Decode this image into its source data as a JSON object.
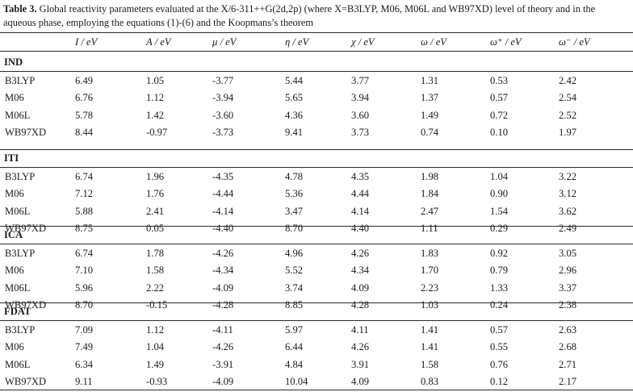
{
  "caption": {
    "label": "Table 3.",
    "text": " Global reactivity parameters evaluated at the X/6-311++G(2d,2p) (where X=B3LYP, M06, M06L and WB97XD) level of theory and in the aqueous phase, employing the equations (1)-(6) and the Koopmans’s theorem"
  },
  "headers": [
    "I / eV",
    "A / eV",
    "μ / eV",
    "η / eV",
    "χ / eV",
    "ω / eV",
    "ω⁺ / eV",
    "ω⁻ / eV"
  ],
  "groups": [
    {
      "name": "IND",
      "rows": [
        {
          "method": "B3LYP",
          "values": [
            "6.49",
            "1.05",
            "-3.77",
            "5.44",
            "3.77",
            "1.31",
            "0.53",
            "2.42"
          ]
        },
        {
          "method": "M06",
          "values": [
            "6.76",
            "1.12",
            "-3.94",
            "5.65",
            "3.94",
            "1.37",
            "0.57",
            "2.54"
          ]
        },
        {
          "method": "M06L",
          "values": [
            "5.78",
            "1.42",
            "-3.60",
            "4.36",
            "3.60",
            "1.49",
            "0.72",
            "2.52"
          ]
        },
        {
          "method": "WB97XD",
          "values": [
            "8.44",
            "-0.97",
            "-3.73",
            "9.41",
            "3.73",
            "0.74",
            "0.10",
            "1.97"
          ]
        }
      ]
    },
    {
      "name": "ITI",
      "rows": [
        {
          "method": "B3LYP",
          "values": [
            "6.74",
            "1.96",
            "-4.35",
            "4.78",
            "4.35",
            "1.98",
            "1.04",
            "3.22"
          ]
        },
        {
          "method": "M06",
          "values": [
            "7.12",
            "1.76",
            "-4.44",
            "5.36",
            "4.44",
            "1.84",
            "0.90",
            "3.12"
          ]
        },
        {
          "method": "M06L",
          "values": [
            "5.88",
            "2.41",
            "-4.14",
            "3.47",
            "4.14",
            "2.47",
            "1.54",
            "3.62"
          ]
        },
        {
          "method": "WB97XD",
          "values": [
            "8.75",
            "0.05",
            "-4.40",
            "8.70",
            "4.40",
            "1.11",
            "0.29",
            "2.49"
          ]
        }
      ]
    },
    {
      "name": "ICA",
      "rows": [
        {
          "method": "B3LYP",
          "values": [
            "6.74",
            "1.78",
            "-4.26",
            "4.96",
            "4.26",
            "1.83",
            "0.92",
            "3.05"
          ]
        },
        {
          "method": "M06",
          "values": [
            "7.10",
            "1.58",
            "-4.34",
            "5.52",
            "4.34",
            "1.70",
            "0.79",
            "2.96"
          ]
        },
        {
          "method": "M06L",
          "values": [
            "5.96",
            "2.22",
            "-4.09",
            "3.74",
            "4.09",
            "2.23",
            "1.33",
            "3.37"
          ]
        },
        {
          "method": "WB97XD",
          "values": [
            "8.70",
            "-0.15",
            "-4.28",
            "8.85",
            "4.28",
            "1.03",
            "0.24",
            "2.38"
          ]
        }
      ]
    },
    {
      "name": "FDAT",
      "rows": [
        {
          "method": "B3LYP",
          "values": [
            "7.09",
            "1.12",
            "-4.11",
            "5.97",
            "4.11",
            "1.41",
            "0.57",
            "2.63"
          ]
        },
        {
          "method": "M06",
          "values": [
            "7.49",
            "1.04",
            "-4.26",
            "6.44",
            "4.26",
            "1.41",
            "0.55",
            "2.68"
          ]
        },
        {
          "method": "M06L",
          "values": [
            "6.34",
            "1.49",
            "-3.91",
            "4.84",
            "3.91",
            "1.58",
            "0.76",
            "2.71"
          ]
        },
        {
          "method": "WB97XD",
          "values": [
            "9.11",
            "-0.93",
            "-4.09",
            "10.04",
            "4.09",
            "0.83",
            "0.12",
            "2.17"
          ]
        }
      ]
    }
  ]
}
